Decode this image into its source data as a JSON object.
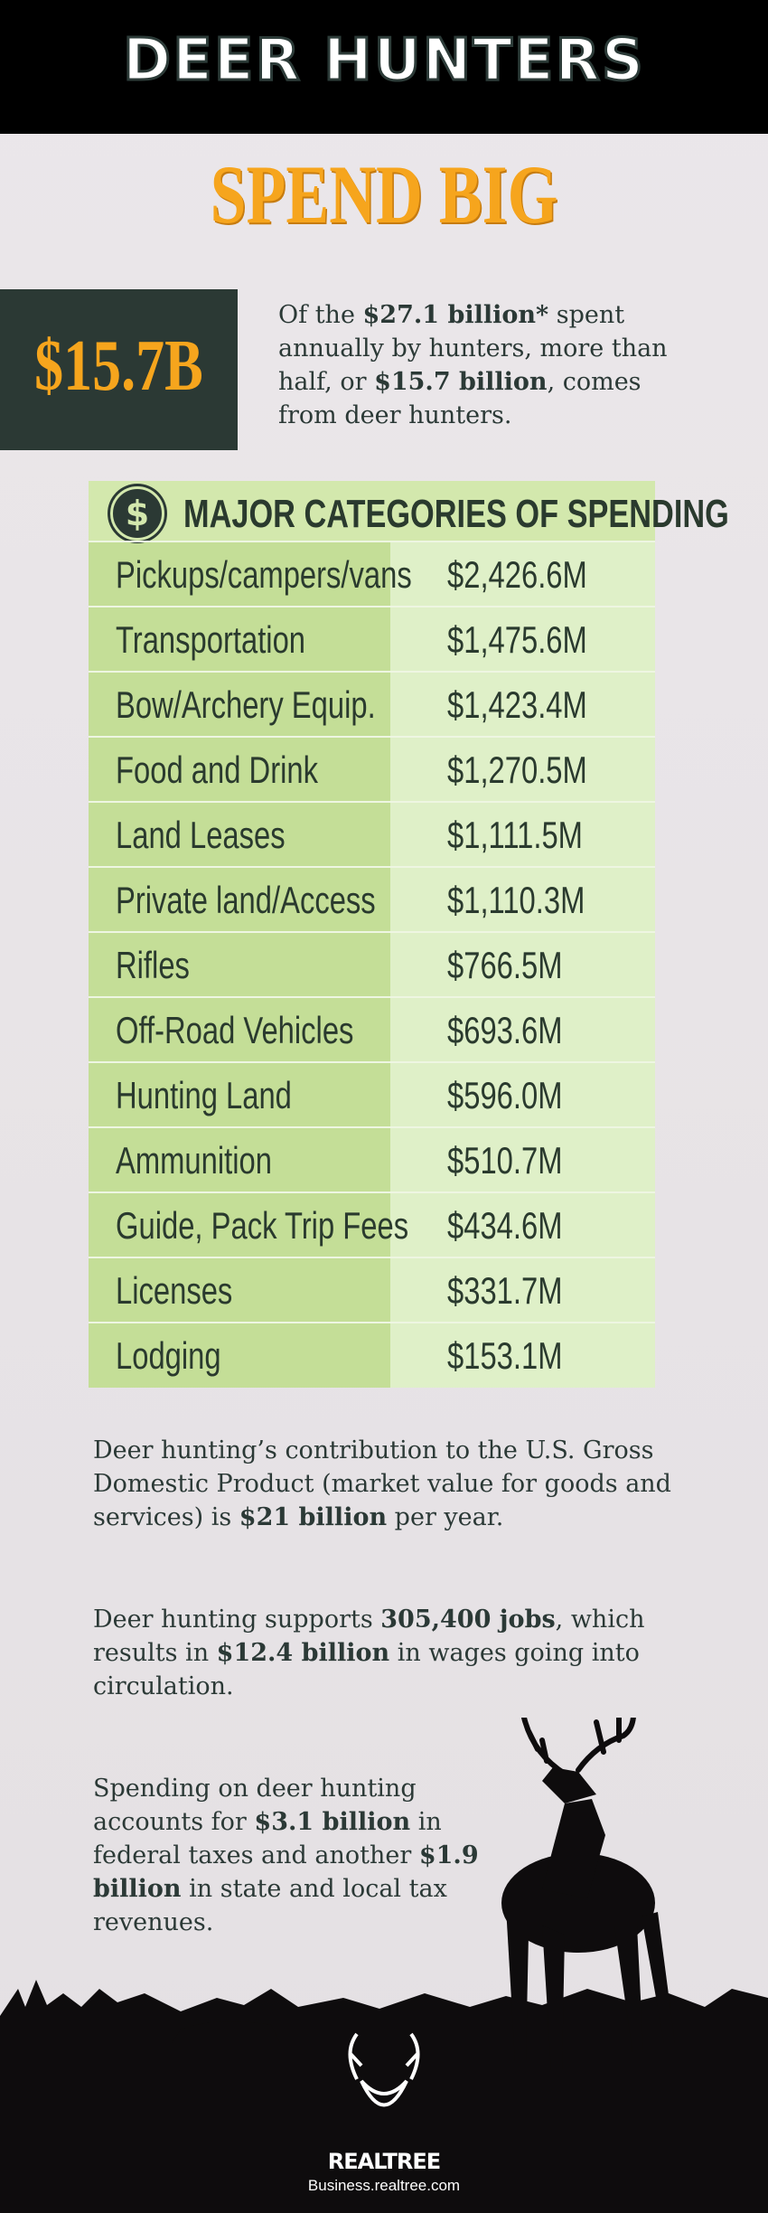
{
  "header": {
    "title": "DEER HUNTERS",
    "subtitle": "SPEND BIG"
  },
  "highlight": {
    "figure": "$15.7B",
    "text": [
      {
        "text": "Of the "
      },
      {
        "text": "$27.1 billion*",
        "bold": true
      },
      {
        "text": " spent annually by hunters, more than half, or "
      },
      {
        "text": "$15.7 billion",
        "bold": true
      },
      {
        "text": ", comes from deer hunters."
      }
    ]
  },
  "table": {
    "icon": "$",
    "title": "MAJOR CATEGORIES OF SPENDING",
    "rows": [
      [
        "Pickups/campers/vans",
        "$2,426.6M"
      ],
      [
        "Transportation",
        "$1,475.6M"
      ],
      [
        "Bow/Archery Equip.",
        "$1,423.4M"
      ],
      [
        "Food and Drink",
        "$1,270.5M"
      ],
      [
        "Land Leases",
        "$1,111.5M"
      ],
      [
        "Private land/Access",
        "$1,110.3M"
      ],
      [
        "Rifles",
        "$766.5M"
      ],
      [
        "Off-Road Vehicles",
        "$693.6M"
      ],
      [
        "Hunting Land",
        "$596.0M"
      ],
      [
        "Ammunition",
        "$510.7M"
      ],
      [
        "Guide, Pack Trip Fees",
        "$434.6M"
      ],
      [
        "Licenses",
        "$331.7M"
      ],
      [
        "Lodging",
        "$153.1M"
      ]
    ]
  },
  "facts": [
    [
      {
        "text": "Deer hunting’s contribution to the U.S. Gross Domestic Product (market value for goods and services) is "
      },
      {
        "text": "$21 billion",
        "bold": true
      },
      {
        "text": " per year."
      }
    ],
    [
      {
        "text": "Deer hunting supports "
      },
      {
        "text": "305,400 jobs",
        "bold": true
      },
      {
        "text": ", which results in "
      },
      {
        "text": "$12.4 billion",
        "bold": true
      },
      {
        "text": " in wages going into circulation."
      }
    ],
    [
      {
        "text": "Spending on deer hunting accounts for "
      },
      {
        "text": "$3.1 billion",
        "bold": true
      },
      {
        "text": " in federal taxes and another "
      },
      {
        "text": "$1.9 billion",
        "bold": true
      },
      {
        "text": " in state and local tax revenues."
      }
    ]
  ],
  "footer": {
    "brand": "REALTREE",
    "url": "Business.realtree.com"
  }
}
